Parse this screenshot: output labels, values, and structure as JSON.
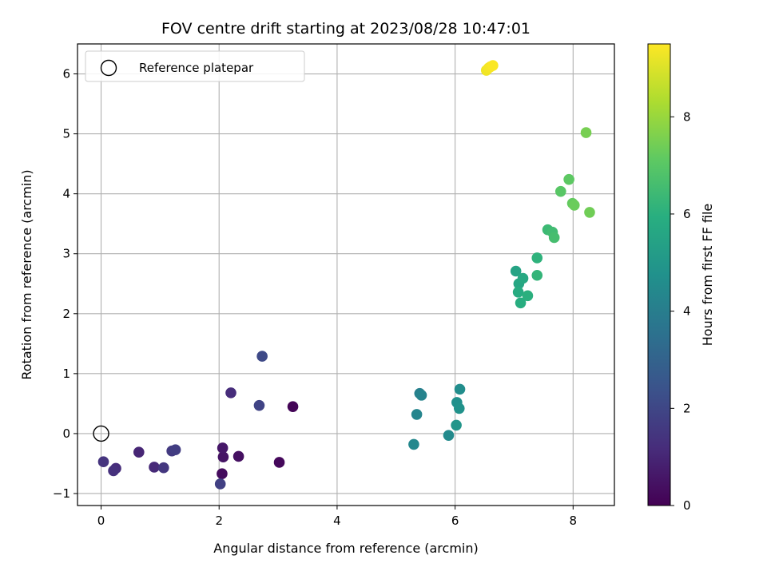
{
  "chart_data": {
    "type": "scatter",
    "title": "FOV centre drift starting at 2023/08/28 10:47:01",
    "xlabel": "Angular distance from reference (arcmin)",
    "ylabel": "Rotation from reference (arcmin)",
    "xlim": [
      -0.4,
      8.7
    ],
    "ylim": [
      -1.2,
      6.5
    ],
    "xticks": [
      0,
      2,
      4,
      6,
      8
    ],
    "yticks": [
      -1,
      0,
      1,
      2,
      3,
      4,
      5,
      6
    ],
    "grid": true,
    "legend": {
      "location": "top-left",
      "entries": [
        "Reference platepar"
      ]
    },
    "reference_point": {
      "x": 0,
      "y": 0,
      "label": "Reference platepar"
    },
    "colorbar": {
      "label": "Hours from first FF file",
      "colormap": "viridis",
      "range": [
        0,
        9.5
      ],
      "ticks": [
        0,
        2,
        4,
        6,
        8
      ]
    },
    "points": [
      {
        "x": 3.25,
        "y": 0.45,
        "c": 0.1
      },
      {
        "x": 3.02,
        "y": -0.48,
        "c": 0.2
      },
      {
        "x": 2.05,
        "y": -0.67,
        "c": 0.3
      },
      {
        "x": 2.33,
        "y": -0.38,
        "c": 0.4
      },
      {
        "x": 2.07,
        "y": -0.39,
        "c": 0.5
      },
      {
        "x": 2.06,
        "y": -0.24,
        "c": 0.6
      },
      {
        "x": 0.64,
        "y": -0.31,
        "c": 1.0
      },
      {
        "x": 0.9,
        "y": -0.56,
        "c": 1.1
      },
      {
        "x": 0.25,
        "y": -0.58,
        "c": 1.2
      },
      {
        "x": 0.21,
        "y": -0.62,
        "c": 1.3
      },
      {
        "x": 2.2,
        "y": 0.68,
        "c": 1.2
      },
      {
        "x": 0.04,
        "y": -0.47,
        "c": 1.4
      },
      {
        "x": 1.06,
        "y": -0.57,
        "c": 1.5
      },
      {
        "x": 1.2,
        "y": -0.29,
        "c": 1.6
      },
      {
        "x": 1.26,
        "y": -0.27,
        "c": 1.7
      },
      {
        "x": 2.02,
        "y": -0.84,
        "c": 1.8
      },
      {
        "x": 2.68,
        "y": 0.47,
        "c": 1.9
      },
      {
        "x": 2.73,
        "y": 1.29,
        "c": 2.1
      },
      {
        "x": 5.4,
        "y": 0.67,
        "c": 4.1
      },
      {
        "x": 5.43,
        "y": 0.64,
        "c": 4.2
      },
      {
        "x": 5.35,
        "y": 0.32,
        "c": 4.3
      },
      {
        "x": 5.3,
        "y": -0.18,
        "c": 4.4
      },
      {
        "x": 5.89,
        "y": -0.03,
        "c": 4.5
      },
      {
        "x": 6.08,
        "y": 0.74,
        "c": 4.6
      },
      {
        "x": 6.03,
        "y": 0.52,
        "c": 4.7
      },
      {
        "x": 6.07,
        "y": 0.42,
        "c": 4.8
      },
      {
        "x": 6.02,
        "y": 0.14,
        "c": 4.9
      },
      {
        "x": 7.03,
        "y": 2.71,
        "c": 5.5
      },
      {
        "x": 7.08,
        "y": 2.5,
        "c": 5.6
      },
      {
        "x": 7.15,
        "y": 2.59,
        "c": 5.7
      },
      {
        "x": 7.07,
        "y": 2.36,
        "c": 5.8
      },
      {
        "x": 7.11,
        "y": 2.18,
        "c": 5.9
      },
      {
        "x": 7.23,
        "y": 2.3,
        "c": 6.0
      },
      {
        "x": 7.39,
        "y": 2.93,
        "c": 6.1
      },
      {
        "x": 7.39,
        "y": 2.64,
        "c": 6.2
      },
      {
        "x": 7.57,
        "y": 3.4,
        "c": 6.4
      },
      {
        "x": 7.65,
        "y": 3.36,
        "c": 6.5
      },
      {
        "x": 7.68,
        "y": 3.27,
        "c": 6.6
      },
      {
        "x": 7.79,
        "y": 4.04,
        "c": 7.0
      },
      {
        "x": 7.93,
        "y": 4.24,
        "c": 7.1
      },
      {
        "x": 7.99,
        "y": 3.84,
        "c": 7.2
      },
      {
        "x": 8.02,
        "y": 3.81,
        "c": 7.3
      },
      {
        "x": 8.28,
        "y": 3.69,
        "c": 7.4
      },
      {
        "x": 8.22,
        "y": 5.02,
        "c": 7.5
      },
      {
        "x": 6.53,
        "y": 6.06,
        "c": 9.3
      },
      {
        "x": 6.57,
        "y": 6.1,
        "c": 9.35
      },
      {
        "x": 6.6,
        "y": 6.12,
        "c": 9.4
      },
      {
        "x": 6.64,
        "y": 6.14,
        "c": 9.45
      }
    ]
  }
}
